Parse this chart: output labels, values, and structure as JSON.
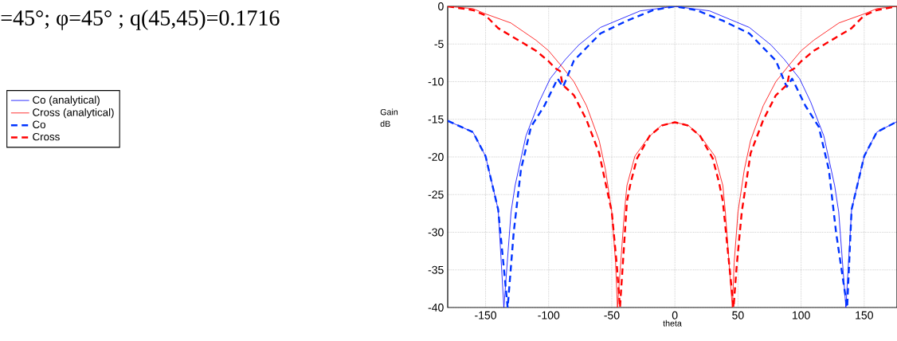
{
  "chart_data": {
    "type": "line",
    "title": "=45°;  φ=45° ;  q(45,45)=0.1716",
    "xlabel": "theta",
    "ylabel": "Gain dB",
    "xlim": [
      -180,
      176
    ],
    "ylim": [
      -40,
      0
    ],
    "xticks": [
      -150,
      -100,
      -50,
      0,
      50,
      100,
      150
    ],
    "yticks": [
      0,
      -5,
      -10,
      -15,
      -20,
      -25,
      -30,
      -35,
      -40
    ],
    "grid": true,
    "legend": "left",
    "series": [
      {
        "name": "Co (analytical)",
        "color": "#0000ff",
        "line_style": "solid",
        "x": [
          -180,
          -160,
          -150,
          -140,
          -135.5,
          -129.8,
          -126.6,
          -118,
          -107.6,
          -98.8,
          -86.5,
          -76,
          -59,
          -49,
          -27.5,
          0,
          27.5,
          49,
          59,
          76,
          86.5,
          98.8,
          107.6,
          118,
          126.6,
          129.8,
          135.5,
          140,
          150,
          160,
          176
        ],
        "values": [
          -15.2,
          -16.7,
          -19.9,
          -27,
          -40,
          -27.3,
          -23.8,
          -17.2,
          -12.7,
          -9.6,
          -7,
          -5.1,
          -2.8,
          -2.1,
          -0.6,
          0,
          -0.6,
          -2.1,
          -2.8,
          -5.1,
          -7,
          -9.6,
          -12.7,
          -17.2,
          -23.8,
          -27.3,
          -40,
          -27,
          -19.9,
          -16.7,
          -15.3
        ]
      },
      {
        "name": "Cross (analytical)",
        "color": "#ff0000",
        "line_style": "solid",
        "x": [
          -180,
          -160,
          -150,
          -130,
          -110,
          -100,
          -90,
          -80,
          -70,
          -60,
          -55,
          -50,
          -47,
          -45.5,
          -40,
          -38,
          -31.7,
          -21,
          -10.6,
          0,
          10.6,
          21,
          31.7,
          38,
          40,
          45.5,
          47,
          50,
          55,
          60,
          70,
          80,
          90,
          100,
          110,
          130,
          150,
          160,
          176
        ],
        "values": [
          0,
          -0.3,
          -1,
          -2.2,
          -4.5,
          -5.9,
          -7.9,
          -10,
          -13.2,
          -17.8,
          -21.7,
          -27.3,
          -34,
          -40,
          -27.3,
          -23.8,
          -19.9,
          -17.4,
          -15.8,
          -15.4,
          -15.8,
          -17.4,
          -19.9,
          -23.8,
          -27.3,
          -40,
          -34,
          -27.3,
          -21.7,
          -17.8,
          -13.2,
          -10,
          -7.9,
          -5.9,
          -4.5,
          -2.2,
          -1,
          -0.3,
          0
        ]
      },
      {
        "name": "Co",
        "color": "#0033ff",
        "line_style": "dashed",
        "x": [
          -180,
          -160,
          -150,
          -140,
          -132.5,
          -127.7,
          -122,
          -114,
          -103.4,
          -92.9,
          -88.6,
          -80,
          -59,
          -38,
          -17,
          0,
          17,
          38,
          59,
          80,
          88.6,
          92.9,
          103.4,
          114,
          122,
          127.7,
          136.5,
          140,
          150,
          160,
          176
        ],
        "values": [
          -15.2,
          -16.7,
          -19.9,
          -27,
          -40,
          -30,
          -21.7,
          -16,
          -13.2,
          -9.6,
          -10.7,
          -7.2,
          -3.6,
          -1.9,
          -0.5,
          0,
          -0.5,
          -1.9,
          -3.6,
          -7.2,
          -10.7,
          -9.6,
          -13.2,
          -16,
          -21.7,
          -30,
          -40,
          -27,
          -19.9,
          -16.7,
          -15.3
        ]
      },
      {
        "name": "Cross",
        "color": "#ff0000",
        "line_style": "dashed",
        "x": [
          -180,
          -160,
          -150,
          -140,
          -120,
          -110,
          -100,
          -95,
          -91,
          -89,
          -80,
          -70,
          -60,
          -50,
          -46,
          -43.5,
          -38,
          -35,
          -30,
          -20,
          -10,
          0,
          10,
          20,
          30,
          35,
          38,
          46.5,
          49,
          53,
          60,
          70,
          80,
          89,
          91,
          95,
          100,
          110,
          120,
          140,
          150,
          160,
          176
        ],
        "values": [
          0,
          -0.5,
          -1.2,
          -2.9,
          -4.9,
          -5.9,
          -7.3,
          -8.2,
          -8.6,
          -10.4,
          -11.8,
          -15.1,
          -19.5,
          -27.3,
          -34.4,
          -40,
          -25.9,
          -23.4,
          -20.2,
          -17.2,
          -15.8,
          -15.4,
          -15.8,
          -17.2,
          -20.2,
          -23.4,
          -25.9,
          -40,
          -34.4,
          -27.3,
          -19.5,
          -15.1,
          -11.8,
          -10.4,
          -8.6,
          -8.2,
          -7.3,
          -5.9,
          -4.9,
          -2.9,
          -1.2,
          -0.5,
          0
        ]
      }
    ]
  }
}
